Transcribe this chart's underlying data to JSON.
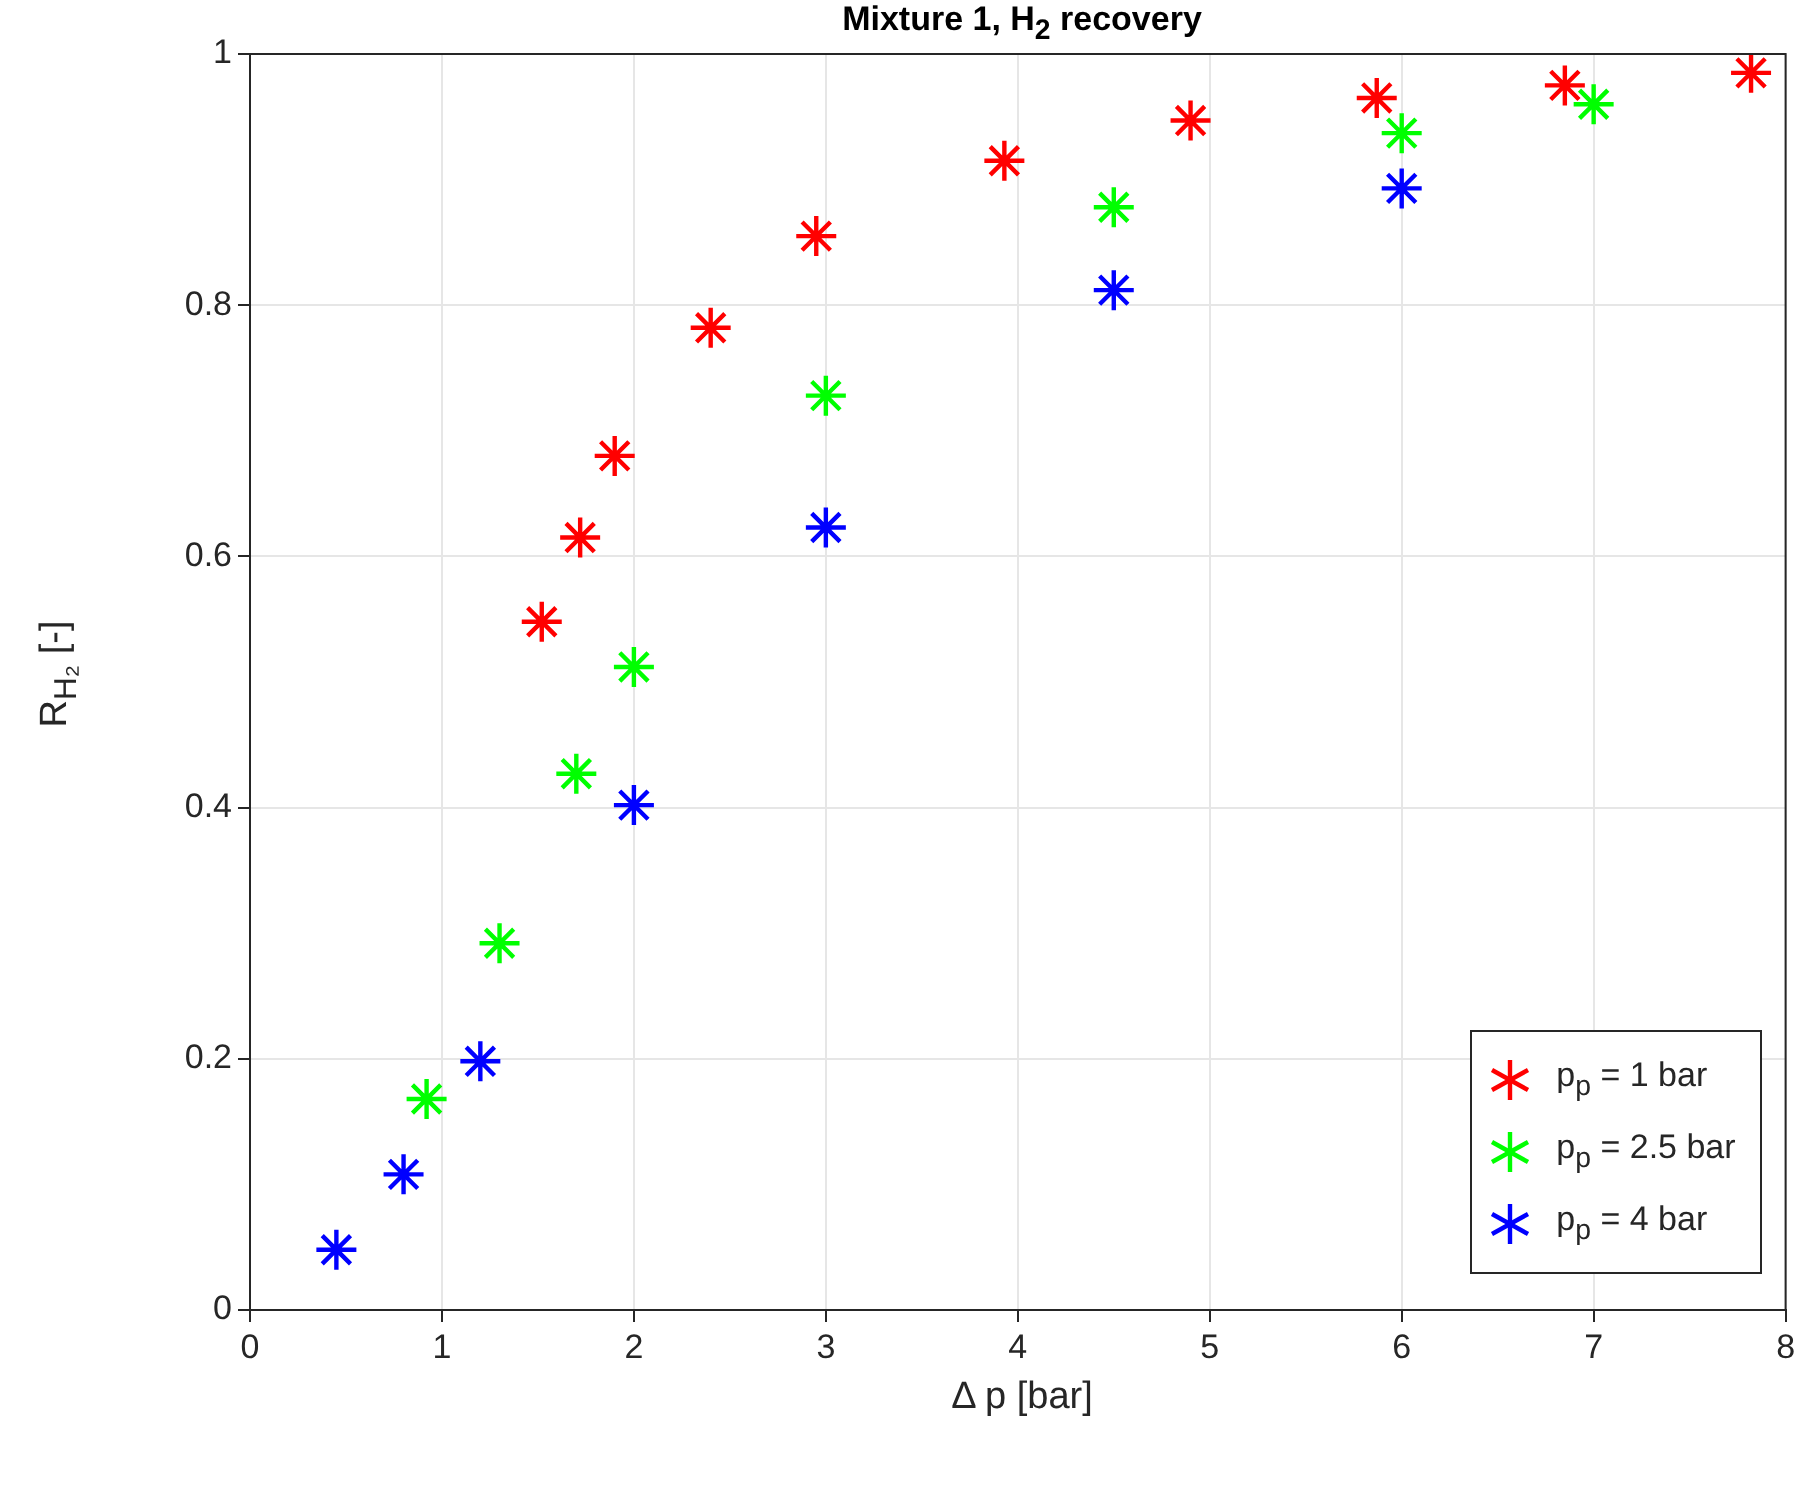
{
  "chart_data": {
    "type": "scatter",
    "title": "Mixture 1, H$_{2}$ recovery",
    "xlabel": "Δ p [bar]",
    "ylabel": "R$_{H₂}$ [-]",
    "xlim": [
      0,
      8
    ],
    "xticks": [
      0,
      1,
      2,
      3,
      4,
      5,
      6,
      7,
      8
    ],
    "ylim": [
      0,
      1
    ],
    "yticks": [
      0,
      0.2,
      0.4,
      0.6,
      0.8,
      1
    ],
    "grid": true,
    "legend": "bottom right",
    "marker": "cross",
    "series": [
      {
        "name": "p$_{p}$ = 1 bar",
        "color": "#ff0000",
        "x": [
          1.52,
          1.72,
          1.9,
          2.4,
          2.95,
          3.93,
          4.9,
          5.87,
          6.85,
          7.82
        ],
        "values": [
          0.548,
          0.615,
          0.68,
          0.782,
          0.855,
          0.915,
          0.947,
          0.965,
          0.975,
          0.985
        ]
      },
      {
        "name": "p$_{p}$ = 2.5 bar",
        "color": "#00ff00",
        "x": [
          0.92,
          1.3,
          1.7,
          2.0,
          3.0,
          4.5,
          6.0,
          7.0
        ],
        "values": [
          0.168,
          0.292,
          0.427,
          0.512,
          0.728,
          0.878,
          0.937,
          0.96
        ]
      },
      {
        "name": "p$_{p}$ = 4 bar",
        "color": "#0000ff",
        "x": [
          0.45,
          0.8,
          1.2,
          2.0,
          3.0,
          4.5,
          6.0
        ],
        "values": [
          0.048,
          0.108,
          0.198,
          0.402,
          0.623,
          0.812,
          0.893
        ]
      }
    ]
  }
}
